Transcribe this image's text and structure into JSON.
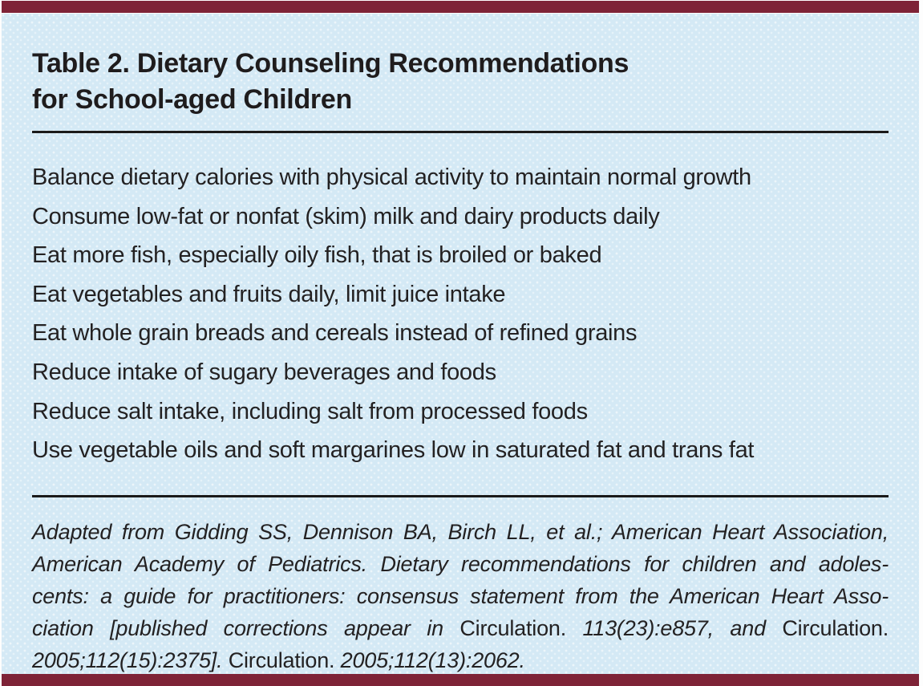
{
  "table": {
    "title_line1": "Table 2. Dietary Counseling Recommendations",
    "title_line2": "for School-aged Children"
  },
  "recommendations": [
    "Balance dietary calories with physical activity to maintain normal growth",
    "Consume low-fat or nonfat (skim) milk and dairy products daily",
    "Eat more fish, especially oily fish, that is broiled or baked",
    "Eat vegetables and fruits daily, limit juice intake",
    "Eat whole grain breads and cereals instead of refined grains",
    "Reduce intake of sugary beverages and foods",
    "Reduce salt intake, including salt from processed foods",
    "Use vegetable oils and soft margarines low in saturated fat and trans fat"
  ],
  "footnote_lines": [
    {
      "justify": true,
      "segments": [
        {
          "style": "italic",
          "text": "Adapted from Gidding SS, Dennison BA, Birch LL, et al.; American Heart Association,"
        }
      ]
    },
    {
      "justify": true,
      "segments": [
        {
          "style": "italic",
          "text": "American Academy of Pediatrics. Dietary recommendations for children and adoles-"
        }
      ]
    },
    {
      "justify": true,
      "segments": [
        {
          "style": "italic",
          "text": "cents: a guide for practitioners: consensus statement from the American Heart Asso-"
        }
      ]
    },
    {
      "justify": true,
      "segments": [
        {
          "style": "italic",
          "text": "ciation [published corrections appear in "
        },
        {
          "style": "roman",
          "text": "Circulation. "
        },
        {
          "style": "italic",
          "text": "113(23):e857, and "
        },
        {
          "style": "roman",
          "text": "Circulation."
        }
      ]
    },
    {
      "justify": false,
      "segments": [
        {
          "style": "italic",
          "text": "2005;112(15):2375]. "
        },
        {
          "style": "roman",
          "text": "Circulation. "
        },
        {
          "style": "italic",
          "text": "2005;112(13):2062."
        }
      ]
    }
  ],
  "colors": {
    "accent_bar": "#7e2337",
    "panel_background": "#d4e9f5",
    "text": "#232122",
    "rule": "#1a1a1a"
  }
}
